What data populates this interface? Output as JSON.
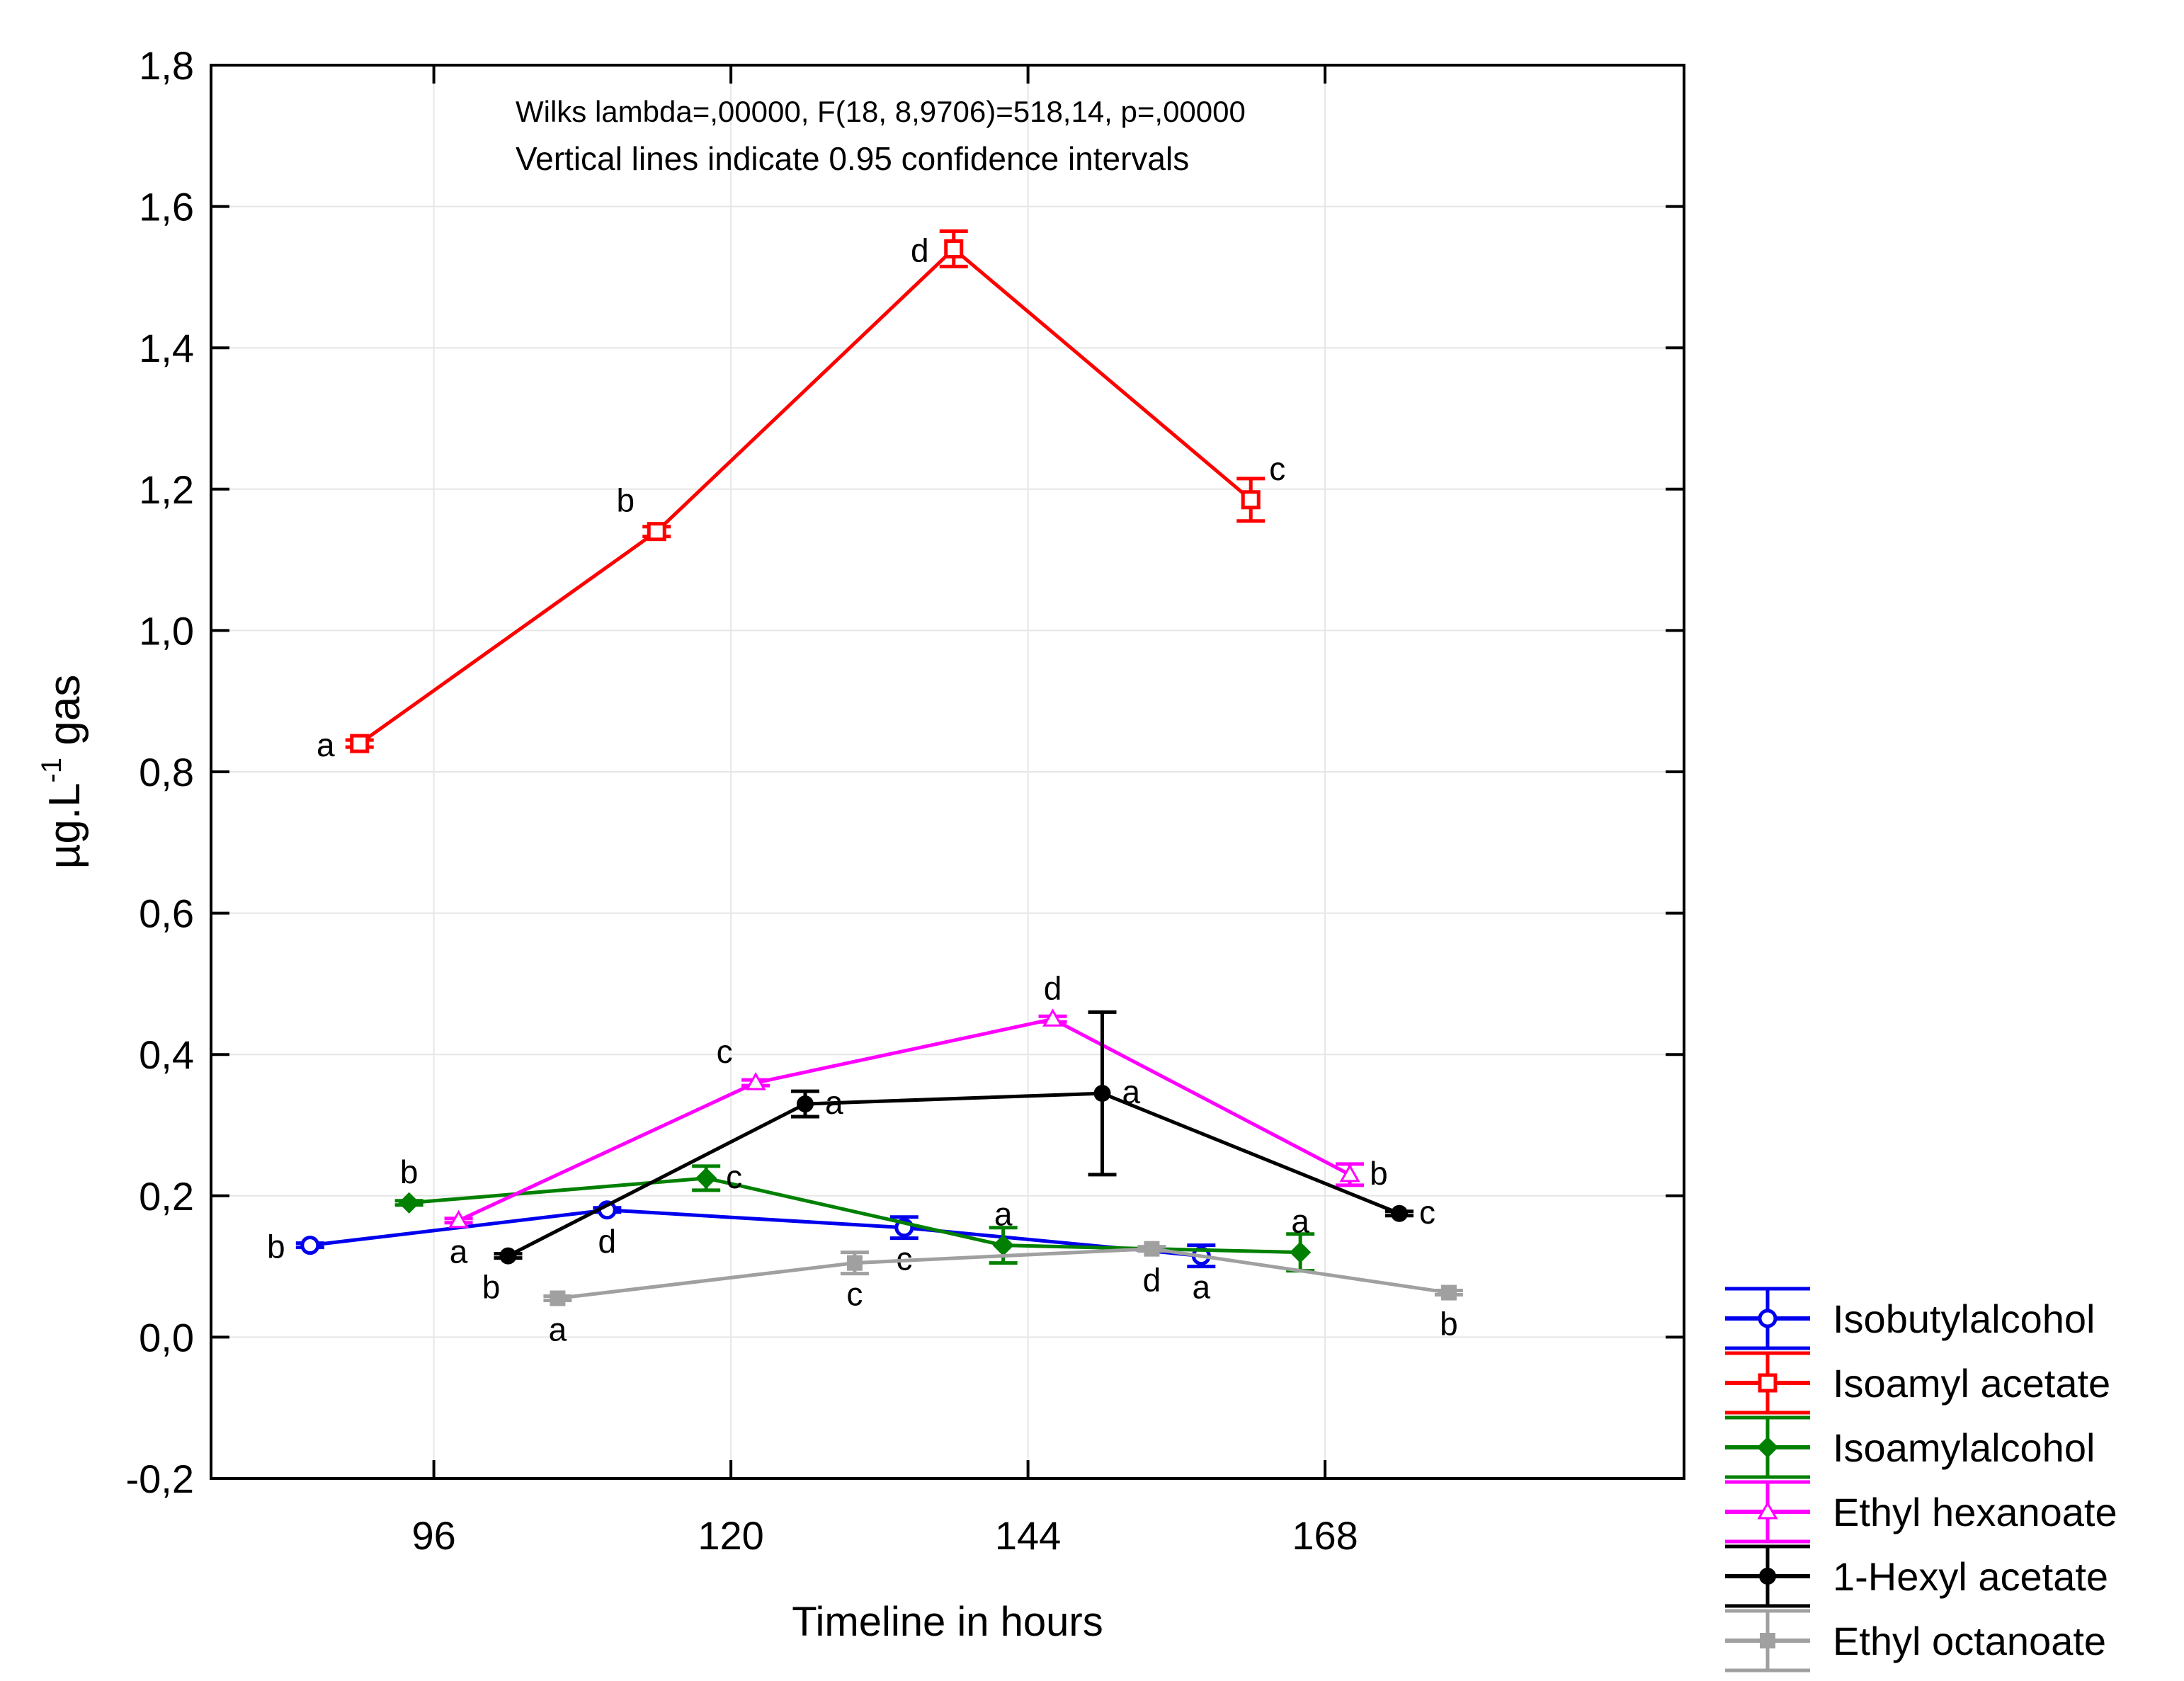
{
  "chart_data": {
    "type": "line",
    "annotation_lines": [
      "Wilks lambda=,00000, F(18, 8,9706)=518,14, p=,00000",
      "Vertical lines indicate 0.95 confidence intervals"
    ],
    "xlabel": "Timeline in hours",
    "ylabel": "µg.L",
    "ylabel_superscript": "-1",
    "ylabel_suffix": " gas",
    "ylim": [
      -0.2,
      1.8
    ],
    "y_ticks": [
      -0.2,
      0.0,
      0.2,
      0.4,
      0.6,
      0.8,
      1.0,
      1.2,
      1.4,
      1.6,
      1.8
    ],
    "y_tick_labels": [
      "-0,2",
      "0,0",
      "0,2",
      "0,4",
      "0,6",
      "0,8",
      "1,0",
      "1,2",
      "1,4",
      "1,6",
      "1,8"
    ],
    "xlim": [
      78,
      197
    ],
    "x_ticks": [
      96,
      120,
      144,
      168
    ],
    "x_tick_labels": [
      "96",
      "120",
      "144",
      "168"
    ],
    "grid": true,
    "legend_position": "bottom-right outside",
    "series": [
      {
        "name": "Isobutylalcohol",
        "color": "#0000ee",
        "marker": "circle",
        "x": [
          86,
          110,
          134,
          158
        ],
        "values": [
          0.13,
          0.18,
          0.155,
          0.115
        ],
        "ci_low": [
          0.127,
          0.177,
          0.14,
          0.1
        ],
        "ci_high": [
          0.133,
          0.183,
          0.17,
          0.13
        ],
        "letters": [
          "b",
          "d",
          "c",
          "a"
        ],
        "letter_pos": [
          "left",
          "below",
          "below",
          "below"
        ]
      },
      {
        "name": "Isoamyl acetate",
        "color": "#ff0000",
        "marker": "square",
        "x": [
          90,
          114,
          138,
          162
        ],
        "values": [
          0.84,
          1.14,
          1.54,
          1.185
        ],
        "ci_low": [
          0.835,
          1.133,
          1.515,
          1.155
        ],
        "ci_high": [
          0.845,
          1.147,
          1.565,
          1.215
        ],
        "letters": [
          "a",
          "b",
          "d",
          "c"
        ],
        "letter_pos": [
          "left",
          "above-left",
          "left",
          "above-right"
        ]
      },
      {
        "name": "Isoamylalcohol",
        "color": "#008000",
        "marker": "diamond",
        "x": [
          94,
          118,
          142,
          166
        ],
        "values": [
          0.19,
          0.225,
          0.13,
          0.12
        ],
        "ci_low": [
          0.187,
          0.208,
          0.105,
          0.094
        ],
        "ci_high": [
          0.193,
          0.242,
          0.155,
          0.146
        ],
        "letters": [
          "b",
          "c",
          "a",
          "a"
        ],
        "letter_pos": [
          "above",
          "right",
          "above",
          "above"
        ]
      },
      {
        "name": "Ethyl hexanoate",
        "color": "#ff00ff",
        "marker": "triangle",
        "x": [
          98,
          122,
          146,
          170
        ],
        "values": [
          0.165,
          0.36,
          0.45,
          0.23
        ],
        "ci_low": [
          0.162,
          0.356,
          0.446,
          0.215
        ],
        "ci_high": [
          0.168,
          0.364,
          0.454,
          0.245
        ],
        "letters": [
          "a",
          "c",
          "d",
          "b"
        ],
        "letter_pos": [
          "below",
          "above-left",
          "above",
          "right"
        ]
      },
      {
        "name": "1-Hexyl acetate",
        "color": "#000000",
        "marker": "filled-circle",
        "x": [
          102,
          126,
          150,
          174
        ],
        "values": [
          0.115,
          0.33,
          0.345,
          0.175
        ],
        "ci_low": [
          0.112,
          0.312,
          0.23,
          0.172
        ],
        "ci_high": [
          0.118,
          0.348,
          0.46,
          0.178
        ],
        "letters": [
          "b",
          "a",
          "a",
          "c"
        ],
        "letter_pos": [
          "below-left",
          "right",
          "right",
          "right"
        ]
      },
      {
        "name": "Ethyl octanoate",
        "color": "#a0a0a0",
        "marker": "filled-square",
        "x": [
          106,
          130,
          154,
          178
        ],
        "values": [
          0.055,
          0.105,
          0.125,
          0.063
        ],
        "ci_low": [
          0.052,
          0.09,
          0.122,
          0.06
        ],
        "ci_high": [
          0.058,
          0.12,
          0.128,
          0.066
        ],
        "letters": [
          "a",
          "c",
          "d",
          "b"
        ],
        "letter_pos": [
          "below",
          "below",
          "below",
          "below"
        ]
      }
    ]
  }
}
